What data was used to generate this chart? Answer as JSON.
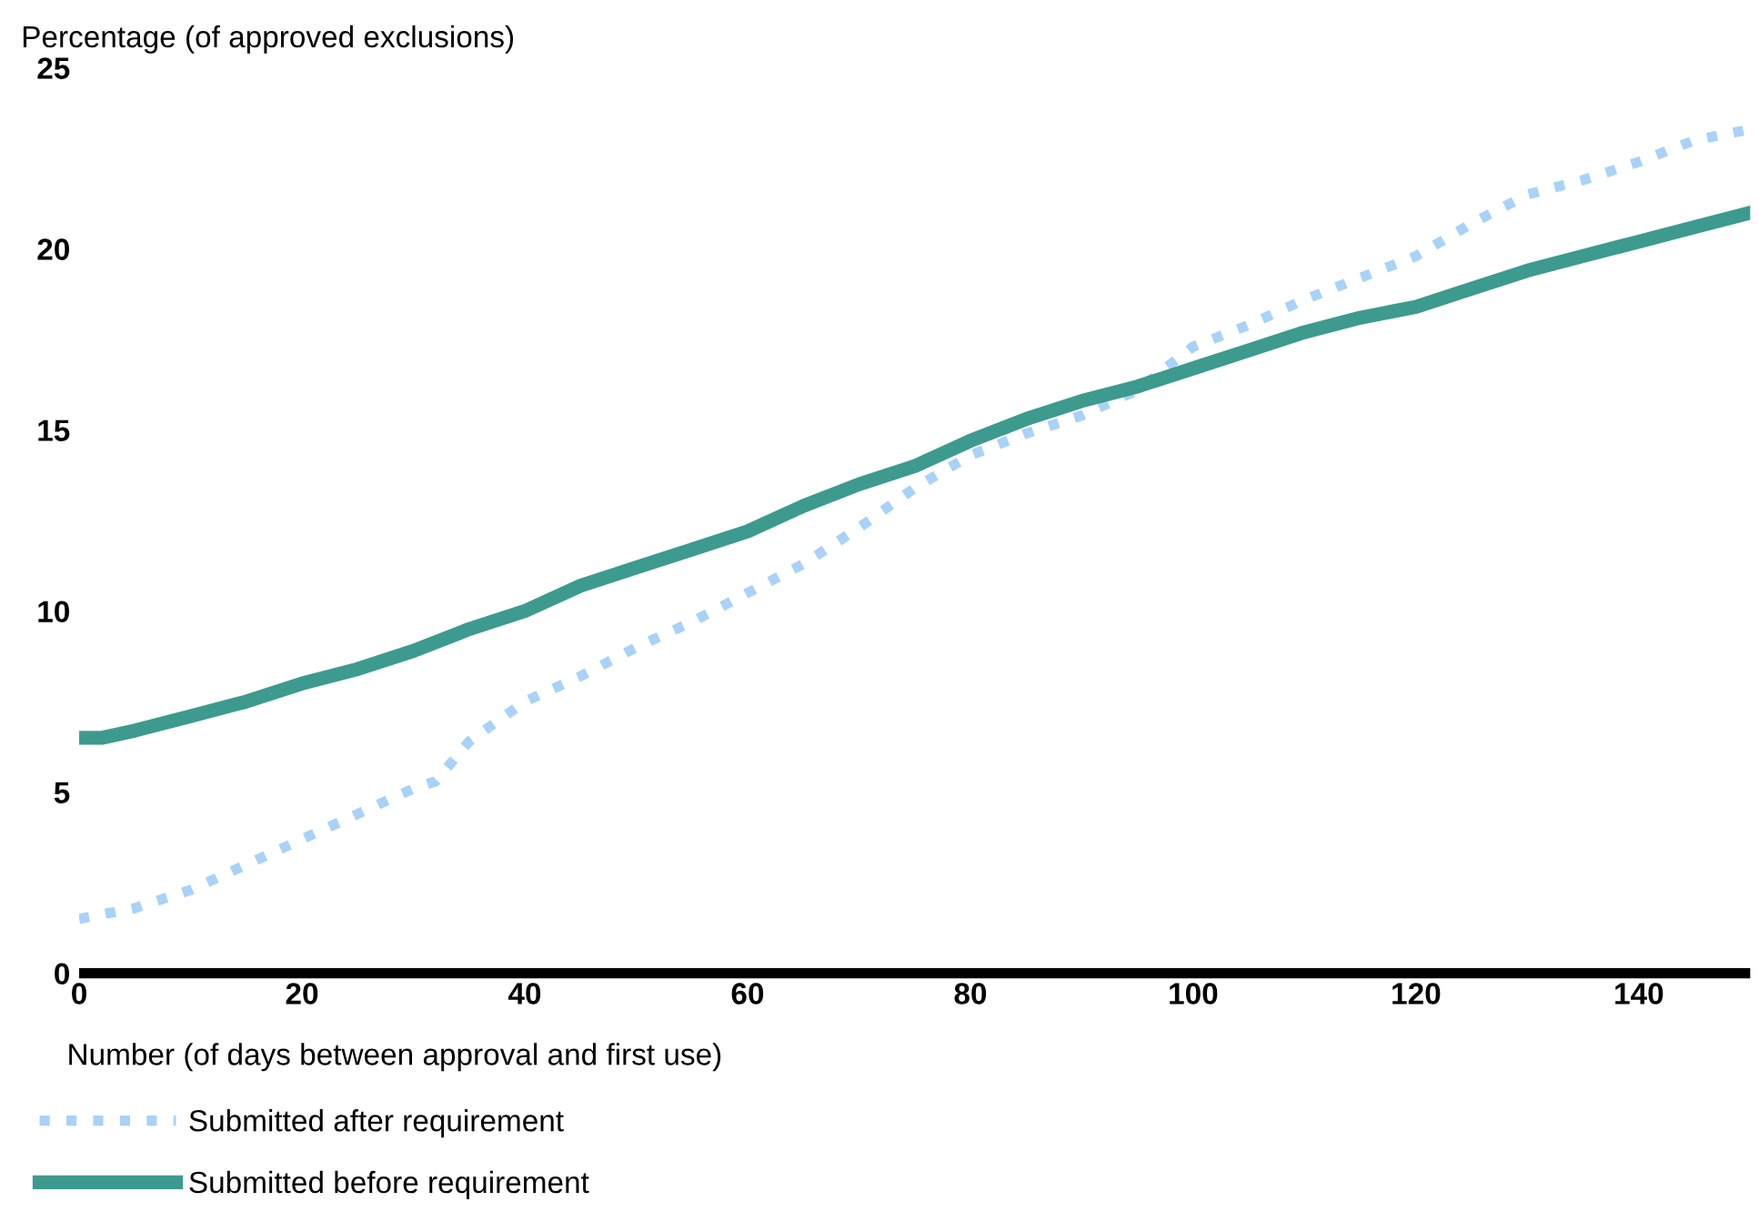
{
  "chart_data": {
    "type": "line",
    "ylabel": "Percentage (of approved exclusions)",
    "xlabel": "Number (of days between approval and first use)",
    "xlim": [
      0,
      150
    ],
    "ylim": [
      0,
      25
    ],
    "xticks": [
      0,
      20,
      40,
      60,
      80,
      100,
      120,
      140
    ],
    "yticks": [
      0,
      5,
      10,
      15,
      20,
      25
    ],
    "grid": false,
    "legend": "bottom left",
    "series": [
      {
        "name": "Submitted after requirement",
        "color": "#a8d2f8",
        "line_style": "dotted",
        "x": [
          0,
          5,
          10,
          15,
          20,
          25,
          30,
          32,
          35,
          40,
          45,
          50,
          55,
          60,
          65,
          70,
          75,
          80,
          85,
          90,
          95,
          100,
          105,
          110,
          115,
          120,
          125,
          130,
          135,
          140,
          145,
          150
        ],
        "values": [
          1.5,
          1.8,
          2.3,
          3.0,
          3.7,
          4.4,
          5.1,
          5.3,
          6.4,
          7.5,
          8.2,
          9.0,
          9.7,
          10.5,
          11.3,
          12.3,
          13.4,
          14.3,
          14.9,
          15.4,
          16.1,
          17.3,
          17.9,
          18.6,
          19.2,
          19.8,
          20.7,
          21.5,
          21.9,
          22.4,
          23.0,
          23.3
        ]
      },
      {
        "name": "Submitted before requirement",
        "color": "#3d9a8f",
        "line_style": "solid",
        "x": [
          0,
          2,
          5,
          10,
          15,
          20,
          25,
          30,
          35,
          40,
          45,
          50,
          55,
          60,
          65,
          70,
          75,
          80,
          85,
          90,
          95,
          100,
          105,
          110,
          115,
          120,
          125,
          130,
          135,
          140,
          145,
          150
        ],
        "values": [
          6.5,
          6.5,
          6.7,
          7.1,
          7.5,
          8.0,
          8.4,
          8.9,
          9.5,
          10.0,
          10.7,
          11.2,
          11.7,
          12.2,
          12.9,
          13.5,
          14.0,
          14.7,
          15.3,
          15.8,
          16.2,
          16.7,
          17.2,
          17.7,
          18.1,
          18.4,
          18.9,
          19.4,
          19.8,
          20.2,
          20.6,
          21.0
        ]
      }
    ]
  }
}
